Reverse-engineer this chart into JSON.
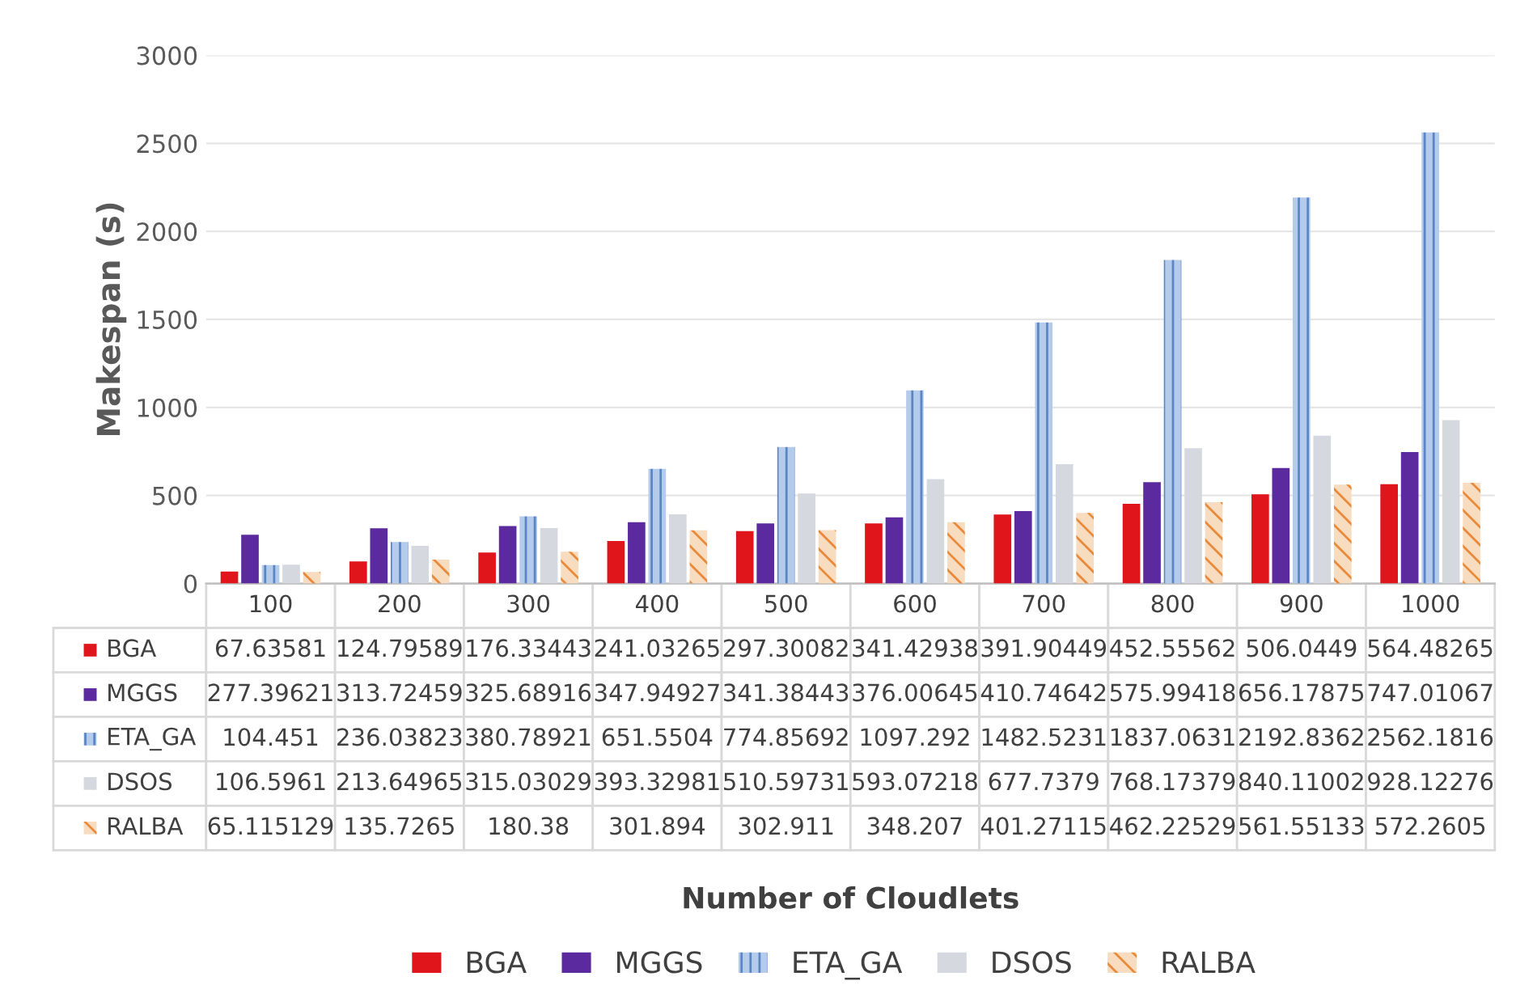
{
  "chart_data": {
    "type": "bar",
    "annotations": [
      "Number of Cloudlets"
    ],
    "ylabel": "Makespan (s)",
    "categories": [
      "100",
      "200",
      "300",
      "400",
      "500",
      "600",
      "700",
      "800",
      "900",
      "1000"
    ],
    "series": [
      {
        "name": "BGA",
        "color": "#e0151b",
        "values": [
          67.63581,
          124.79589,
          176.33443,
          241.03265,
          297.30082,
          341.42938,
          391.90449,
          452.55562,
          506.0449,
          564.48265
        ]
      },
      {
        "name": "MGGS",
        "color": "#5b2a9e",
        "values": [
          277.39621,
          313.72459,
          325.68916,
          347.94927,
          341.38443,
          376.00645,
          410.74642,
          575.99418,
          656.17875,
          747.01067
        ]
      },
      {
        "name": "ETA_GA",
        "color": "#b4cbec",
        "values": [
          104.451,
          236.03823,
          380.78921,
          651.5504,
          774.85692,
          1097.292,
          1482.5231,
          1837.0631,
          2192.8362,
          2562.1816
        ]
      },
      {
        "name": "DSOS",
        "color": "#d5d9df",
        "values": [
          106.5961,
          213.64965,
          315.03029,
          393.32981,
          510.59731,
          593.07218,
          677.7379,
          768.17379,
          840.11002,
          928.12276
        ]
      },
      {
        "name": "RALBA",
        "color": "#f7dcc0",
        "values": [
          65.115129,
          135.7265,
          180.38,
          301.894,
          302.911,
          348.207,
          401.27115,
          462.22529,
          561.55133,
          572.2605
        ]
      }
    ],
    "ylim": [
      0,
      3000
    ],
    "yticks": [
      0,
      500,
      1000,
      1500,
      2000,
      2500,
      3000
    ],
    "grid": "y",
    "legend": "bottom",
    "data_labels": true
  }
}
